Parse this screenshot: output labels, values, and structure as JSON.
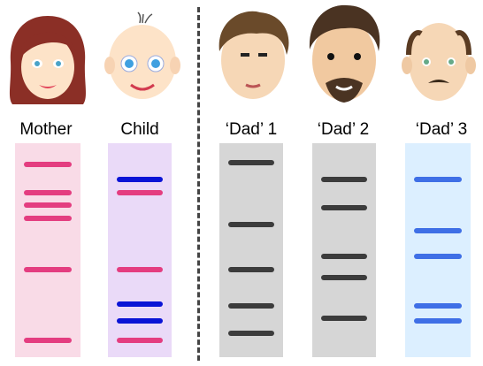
{
  "colors": {
    "mother_lane": "#f9dbe7",
    "mother_band": "#e43d80",
    "child_lane": "#eadaf8",
    "child_pink_band": "#e43d80",
    "child_blue_band": "#0a14d6",
    "dad1_lane": "#d6d6d6",
    "dad2_lane": "#d6d6d6",
    "dad_band": "#3c3c3c",
    "dad3_lane": "#dcefff",
    "dad3_band": "#3f6fe6",
    "divider": "#444444"
  },
  "lanes": [
    {
      "id": "mother",
      "label": "Mother",
      "face_icon": "mother-face-icon",
      "bands": [
        {
          "pos": 0.1,
          "c": "pink"
        },
        {
          "pos": 0.23,
          "c": "pink"
        },
        {
          "pos": 0.29,
          "c": "pink"
        },
        {
          "pos": 0.35,
          "c": "pink"
        },
        {
          "pos": 0.59,
          "c": "pink"
        },
        {
          "pos": 0.92,
          "c": "pink"
        }
      ]
    },
    {
      "id": "child",
      "label": "Child",
      "face_icon": "child-face-icon",
      "bands": [
        {
          "pos": 0.17,
          "c": "blue"
        },
        {
          "pos": 0.23,
          "c": "pink"
        },
        {
          "pos": 0.59,
          "c": "pink"
        },
        {
          "pos": 0.75,
          "c": "blue"
        },
        {
          "pos": 0.83,
          "c": "blue"
        },
        {
          "pos": 0.92,
          "c": "pink"
        }
      ]
    },
    {
      "id": "dad1",
      "label": "‘Dad’ 1",
      "face_icon": "dad1-face-icon",
      "bands": [
        {
          "pos": 0.09,
          "c": "dark"
        },
        {
          "pos": 0.38,
          "c": "dark"
        },
        {
          "pos": 0.59,
          "c": "dark"
        },
        {
          "pos": 0.76,
          "c": "dark"
        },
        {
          "pos": 0.89,
          "c": "dark"
        }
      ]
    },
    {
      "id": "dad2",
      "label": "‘Dad’ 2",
      "face_icon": "dad2-face-icon",
      "bands": [
        {
          "pos": 0.17,
          "c": "dark"
        },
        {
          "pos": 0.3,
          "c": "dark"
        },
        {
          "pos": 0.53,
          "c": "dark"
        },
        {
          "pos": 0.63,
          "c": "dark"
        },
        {
          "pos": 0.82,
          "c": "dark"
        }
      ]
    },
    {
      "id": "dad3",
      "label": "‘Dad’ 3",
      "face_icon": "dad3-face-icon",
      "bands": [
        {
          "pos": 0.17,
          "c": "blue3"
        },
        {
          "pos": 0.41,
          "c": "blue3"
        },
        {
          "pos": 0.53,
          "c": "blue3"
        },
        {
          "pos": 0.76,
          "c": "blue3"
        },
        {
          "pos": 0.83,
          "c": "blue3"
        }
      ]
    }
  ]
}
